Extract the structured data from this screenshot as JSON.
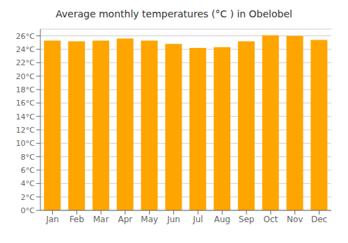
{
  "chart_data": {
    "type": "bar",
    "title": "Average monthly temperatures (°C ) in Obelobel",
    "categories": [
      "Jan",
      "Feb",
      "Mar",
      "Apr",
      "May",
      "Jun",
      "Jul",
      "Aug",
      "Sep",
      "Oct",
      "Nov",
      "Dec"
    ],
    "values": [
      25.3,
      25.2,
      25.3,
      25.6,
      25.3,
      24.8,
      24.2,
      24.3,
      25.2,
      26.1,
      26.0,
      25.4
    ],
    "color": "#FFA500",
    "ylim": [
      0,
      27
    ],
    "yticks": [
      {
        "value": 0,
        "label": "0°C"
      },
      {
        "value": 2,
        "label": "2°C"
      },
      {
        "value": 4,
        "label": "4°C"
      },
      {
        "value": 6,
        "label": "6°C"
      },
      {
        "value": 8,
        "label": "8°C"
      },
      {
        "value": 10,
        "label": "10°C"
      },
      {
        "value": 12,
        "label": "12°C"
      },
      {
        "value": 14,
        "label": "14°C"
      },
      {
        "value": 16,
        "label": "16°C"
      },
      {
        "value": 18,
        "label": "18°C"
      },
      {
        "value": 20,
        "label": "20°C"
      },
      {
        "value": 22,
        "label": "22°C"
      },
      {
        "value": 24,
        "label": "24°C"
      },
      {
        "value": 26,
        "label": "26°C"
      }
    ],
    "grid": true
  }
}
